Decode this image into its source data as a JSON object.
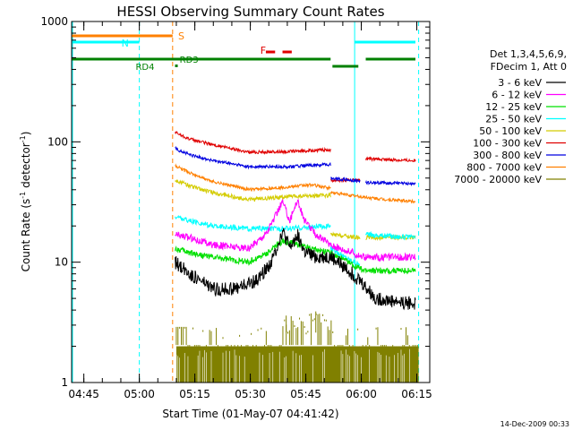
{
  "chart_data": {
    "type": "line",
    "title": "HESSI Observing Summary Count Rates",
    "xlabel": "Start Time (01-May-07 04:41:42)",
    "ylabel_main": "Count Rate (s",
    "ylabel_sup1": "-1",
    "ylabel_mid": " detector",
    "ylabel_sup2": "-1",
    "ylabel_end": ")",
    "timestamp": "14-Dec-2009 00:33",
    "x_ticks": [
      {
        "label": "04:45",
        "t": 3.3
      },
      {
        "label": "05:00",
        "t": 18.3
      },
      {
        "label": "05:15",
        "t": 33.3
      },
      {
        "label": "05:30",
        "t": 48.3
      },
      {
        "label": "05:45",
        "t": 63.3
      },
      {
        "label": "06:00",
        "t": 78.3
      },
      {
        "label": "06:15",
        "t": 93.3
      }
    ],
    "x_range_minutes": [
      0,
      96.8
    ],
    "y_scale": "log",
    "y_range": [
      1,
      1000
    ],
    "y_ticks": [
      {
        "label": "1",
        "v": 1
      },
      {
        "label": "10",
        "v": 10
      },
      {
        "label": "100",
        "v": 100
      },
      {
        "label": "1000",
        "v": 1000
      }
    ],
    "legend": {
      "header_line1": "Det 1,3,4,5,6,9,",
      "header_line2": "FDecim 1, Att 0",
      "entries": [
        {
          "label": "3 - 6 keV",
          "color": "#000000"
        },
        {
          "label": "6 - 12 keV",
          "color": "#ff00ff"
        },
        {
          "label": "12 - 25 keV",
          "color": "#00e000"
        },
        {
          "label": "25 - 50 keV",
          "color": "#00ffff"
        },
        {
          "label": "50 - 100 keV",
          "color": "#d4cc00"
        },
        {
          "label": "100 - 300 keV",
          "color": "#e00000"
        },
        {
          "label": "300 - 800 keV",
          "color": "#0000e0"
        },
        {
          "label": "800 - 7000 keV",
          "color": "#ff8000"
        },
        {
          "label": "7000 - 20000 keV",
          "color": "#808000"
        }
      ]
    },
    "flags": [
      {
        "label": "S",
        "color": "#ff8000"
      },
      {
        "label": "N",
        "color": "#00ffff"
      },
      {
        "label": "F",
        "color": "#e00000"
      },
      {
        "label": "RD4",
        "color": "#008000"
      },
      {
        "label": "RD3",
        "color": "#008000"
      }
    ],
    "series": [
      {
        "color": "#e00000",
        "segments": [
          {
            "t": [
              28,
              32,
              38,
              48,
              58,
              70
            ],
            "v": [
              120,
              105,
              95,
              82,
              83,
              86
            ]
          },
          {
            "t": [
              70,
              78
            ],
            "v": [
              48,
              48
            ]
          },
          {
            "t": [
              79.5,
              93
            ],
            "v": [
              72,
              70
            ]
          }
        ]
      },
      {
        "color": "#0000e0",
        "segments": [
          {
            "t": [
              28,
              32,
              38,
              48,
              58,
              70
            ],
            "v": [
              88,
              78,
              70,
              62,
              62,
              65
            ]
          },
          {
            "t": [
              70,
              78
            ],
            "v": [
              50,
              47
            ]
          },
          {
            "t": [
              79.5,
              93
            ],
            "v": [
              46,
              45
            ]
          }
        ]
      },
      {
        "color": "#ff8000",
        "segments": [
          {
            "t": [
              28,
              32,
              38,
              48,
              58,
              65,
              70
            ],
            "v": [
              63,
              55,
              47,
              40,
              42,
              44,
              41
            ]
          },
          {
            "t": [
              70,
              78,
              85,
              93
            ],
            "v": [
              38,
              35,
              33,
              32
            ]
          }
        ]
      },
      {
        "color": "#d4cc00",
        "segments": [
          {
            "t": [
              28,
              32,
              38,
              48,
              58,
              70
            ],
            "v": [
              48,
              43,
              38,
              33,
              35,
              36
            ]
          },
          {
            "t": [
              70,
              78
            ],
            "v": [
              17,
              16
            ]
          },
          {
            "t": [
              79.5,
              93
            ],
            "v": [
              16,
              16
            ]
          }
        ]
      },
      {
        "color": "#00ffff",
        "segments": [
          {
            "t": [
              28,
              32,
              38,
              48,
              58,
              70
            ],
            "v": [
              24,
              22,
              20,
              19,
              19,
              20
            ]
          },
          {
            "t": [
              70,
              74,
              78
            ],
            "v": [
              13,
              11,
              9.5
            ]
          },
          {
            "t": [
              79.5,
              93
            ],
            "v": [
              17,
              16
            ]
          }
        ]
      },
      {
        "color": "#ff00ff",
        "segments": [
          {
            "t": [
              28,
              32,
              38,
              48,
              53,
              57,
              59,
              61,
              63,
              66,
              70,
              76,
              79,
              86,
              93
            ],
            "v": [
              17,
              16,
              14,
              13,
              18,
              32,
              22,
              33,
              22,
              17,
              14,
              12,
              11,
              11,
              11
            ]
          }
        ]
      },
      {
        "color": "#00e000",
        "segments": [
          {
            "t": [
              28,
              32,
              38,
              48,
              53,
              57,
              61,
              65,
              70,
              76,
              79,
              86,
              93
            ],
            "v": [
              13,
              12,
              11,
              10,
              12,
              15,
              14,
              13,
              12,
              9.5,
              8.5,
              8.5,
              8.5
            ]
          }
        ]
      },
      {
        "color": "#000000",
        "segments": [
          {
            "t": [
              28,
              32,
              38,
              44,
              50,
              54,
              57,
              59,
              61,
              63,
              66,
              70,
              74,
              78,
              82,
              93
            ],
            "v": [
              10,
              8,
              6,
              6,
              7,
              10,
              18,
              13,
              17,
              12,
              11,
              11,
              9,
              7,
              5,
              4.5
            ]
          }
        ]
      }
    ]
  }
}
